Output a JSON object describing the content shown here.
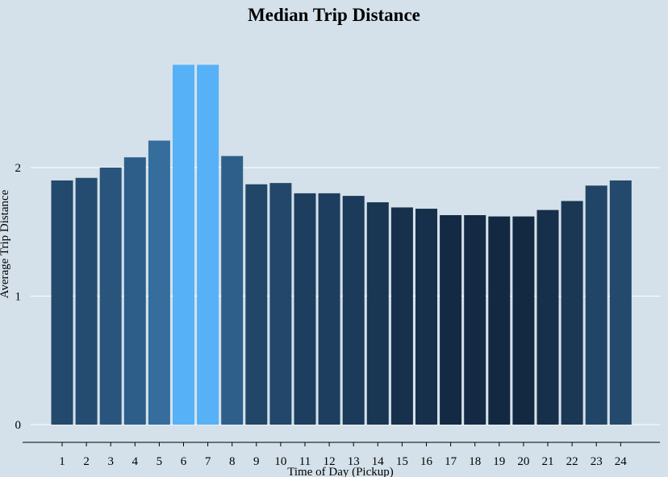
{
  "chart_data": {
    "type": "bar",
    "title": "Median Trip Distance",
    "xlabel": "Time of Day (Pickup)",
    "ylabel": "Average Trip Distance",
    "categories": [
      "1",
      "2",
      "3",
      "4",
      "5",
      "6",
      "7",
      "8",
      "9",
      "10",
      "11",
      "12",
      "13",
      "14",
      "15",
      "16",
      "17",
      "18",
      "19",
      "20",
      "21",
      "22",
      "23",
      "24"
    ],
    "values": [
      1.9,
      1.92,
      2.0,
      2.08,
      2.21,
      2.8,
      2.8,
      2.09,
      1.87,
      1.88,
      1.8,
      1.8,
      1.78,
      1.73,
      1.69,
      1.68,
      1.63,
      1.63,
      1.62,
      1.62,
      1.67,
      1.74,
      1.86,
      1.9
    ],
    "yticks": [
      "0",
      "1",
      "2"
    ],
    "ylim": [
      0,
      2.9
    ],
    "grid": true,
    "colors": {
      "background": "#d4e1ea",
      "gridline": "#ffffff",
      "low": "#132942",
      "high": "#56b1f7",
      "axis": "#000000"
    }
  }
}
